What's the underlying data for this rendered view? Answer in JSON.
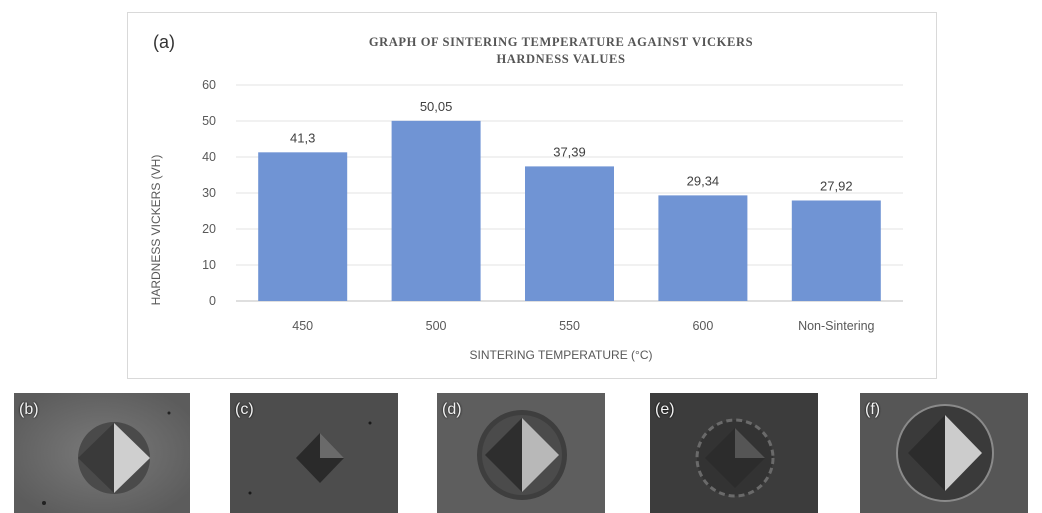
{
  "chart_data": {
    "type": "bar",
    "panel_label": "(a)",
    "title_lines": [
      "GRAPH OF SINTERING TEMPERATURE AGAINST VICKERS",
      "HARDNESS VALUES"
    ],
    "categories": [
      "450",
      "500",
      "550",
      "600",
      "Non-Sintering"
    ],
    "values": [
      41.3,
      50.05,
      37.39,
      29.34,
      27.92
    ],
    "value_labels": [
      "41,3",
      "50,05",
      "37,39",
      "29,34",
      "27,92"
    ],
    "xlabel": "SINTERING TEMPERATURE (°C)",
    "ylabel": "HARDNESS VICKERS (VH)",
    "ylim": [
      0,
      60
    ],
    "yticks": [
      0,
      10,
      20,
      30,
      40,
      50,
      60
    ],
    "grid": true,
    "bar_color": "#7094d4"
  },
  "micrographs": [
    {
      "label": "(b)"
    },
    {
      "label": "(c)"
    },
    {
      "label": "(d)"
    },
    {
      "label": "(e)"
    },
    {
      "label": "(f)"
    }
  ],
  "colors": {
    "grid": "#e3e3e3",
    "axis": "#bfbfbf"
  }
}
